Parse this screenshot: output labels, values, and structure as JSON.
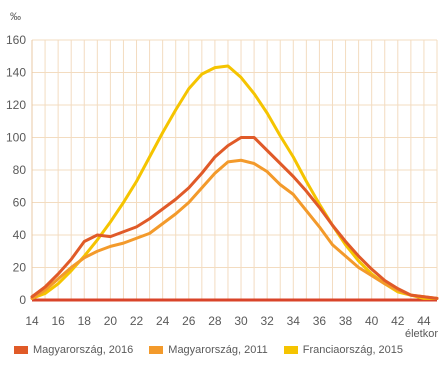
{
  "chart_data": {
    "type": "line",
    "ylabel": "‰",
    "xlabel": "életkor",
    "xlim": [
      14,
      45
    ],
    "ylim": [
      0,
      160
    ],
    "x_ticks": [
      14,
      16,
      18,
      20,
      22,
      24,
      26,
      28,
      30,
      32,
      34,
      36,
      38,
      40,
      42,
      44
    ],
    "y_ticks": [
      0,
      20,
      40,
      60,
      80,
      100,
      120,
      140,
      160
    ],
    "grid": true,
    "legend_position": "bottom",
    "series": [
      {
        "name": "Magyarország, 2016",
        "color": "#e05a28",
        "x": [
          14,
          15,
          16,
          17,
          18,
          19,
          20,
          21,
          22,
          23,
          24,
          25,
          26,
          27,
          28,
          29,
          30,
          31,
          32,
          33,
          34,
          35,
          36,
          37,
          38,
          39,
          40,
          41,
          42,
          43,
          44,
          45
        ],
        "y": [
          2,
          8,
          16,
          25,
          36,
          40,
          39,
          42,
          45,
          50,
          56,
          62,
          69,
          78,
          88,
          95,
          100,
          100,
          92,
          84,
          76,
          67,
          57,
          46,
          36,
          27,
          19,
          12,
          7,
          3,
          2,
          1
        ]
      },
      {
        "name": "Magyarország, 2011",
        "color": "#f39a2b",
        "x": [
          14,
          15,
          16,
          17,
          18,
          19,
          20,
          21,
          22,
          23,
          24,
          25,
          26,
          27,
          28,
          29,
          30,
          31,
          32,
          33,
          34,
          35,
          36,
          37,
          38,
          39,
          40,
          41,
          42,
          43,
          44,
          45
        ],
        "y": [
          1,
          6,
          13,
          20,
          26,
          30,
          33,
          35,
          38,
          41,
          47,
          53,
          60,
          69,
          78,
          85,
          86,
          84,
          79,
          71,
          65,
          55,
          45,
          34,
          27,
          20,
          15,
          10,
          6,
          3,
          2,
          1
        ]
      },
      {
        "name": "Franciaország, 2015",
        "color": "#f5c400",
        "x": [
          14,
          15,
          16,
          17,
          18,
          19,
          20,
          21,
          22,
          23,
          24,
          25,
          26,
          27,
          28,
          29,
          30,
          31,
          32,
          33,
          34,
          35,
          36,
          37,
          38,
          39,
          40,
          41,
          42,
          43,
          44,
          45
        ],
        "y": [
          1,
          4,
          10,
          18,
          27,
          37,
          48,
          60,
          73,
          88,
          103,
          117,
          130,
          139,
          143,
          144,
          137,
          127,
          115,
          101,
          88,
          73,
          59,
          46,
          34,
          24,
          16,
          10,
          5,
          3,
          1,
          1
        ]
      }
    ],
    "baseline_color": "#d9442a"
  }
}
